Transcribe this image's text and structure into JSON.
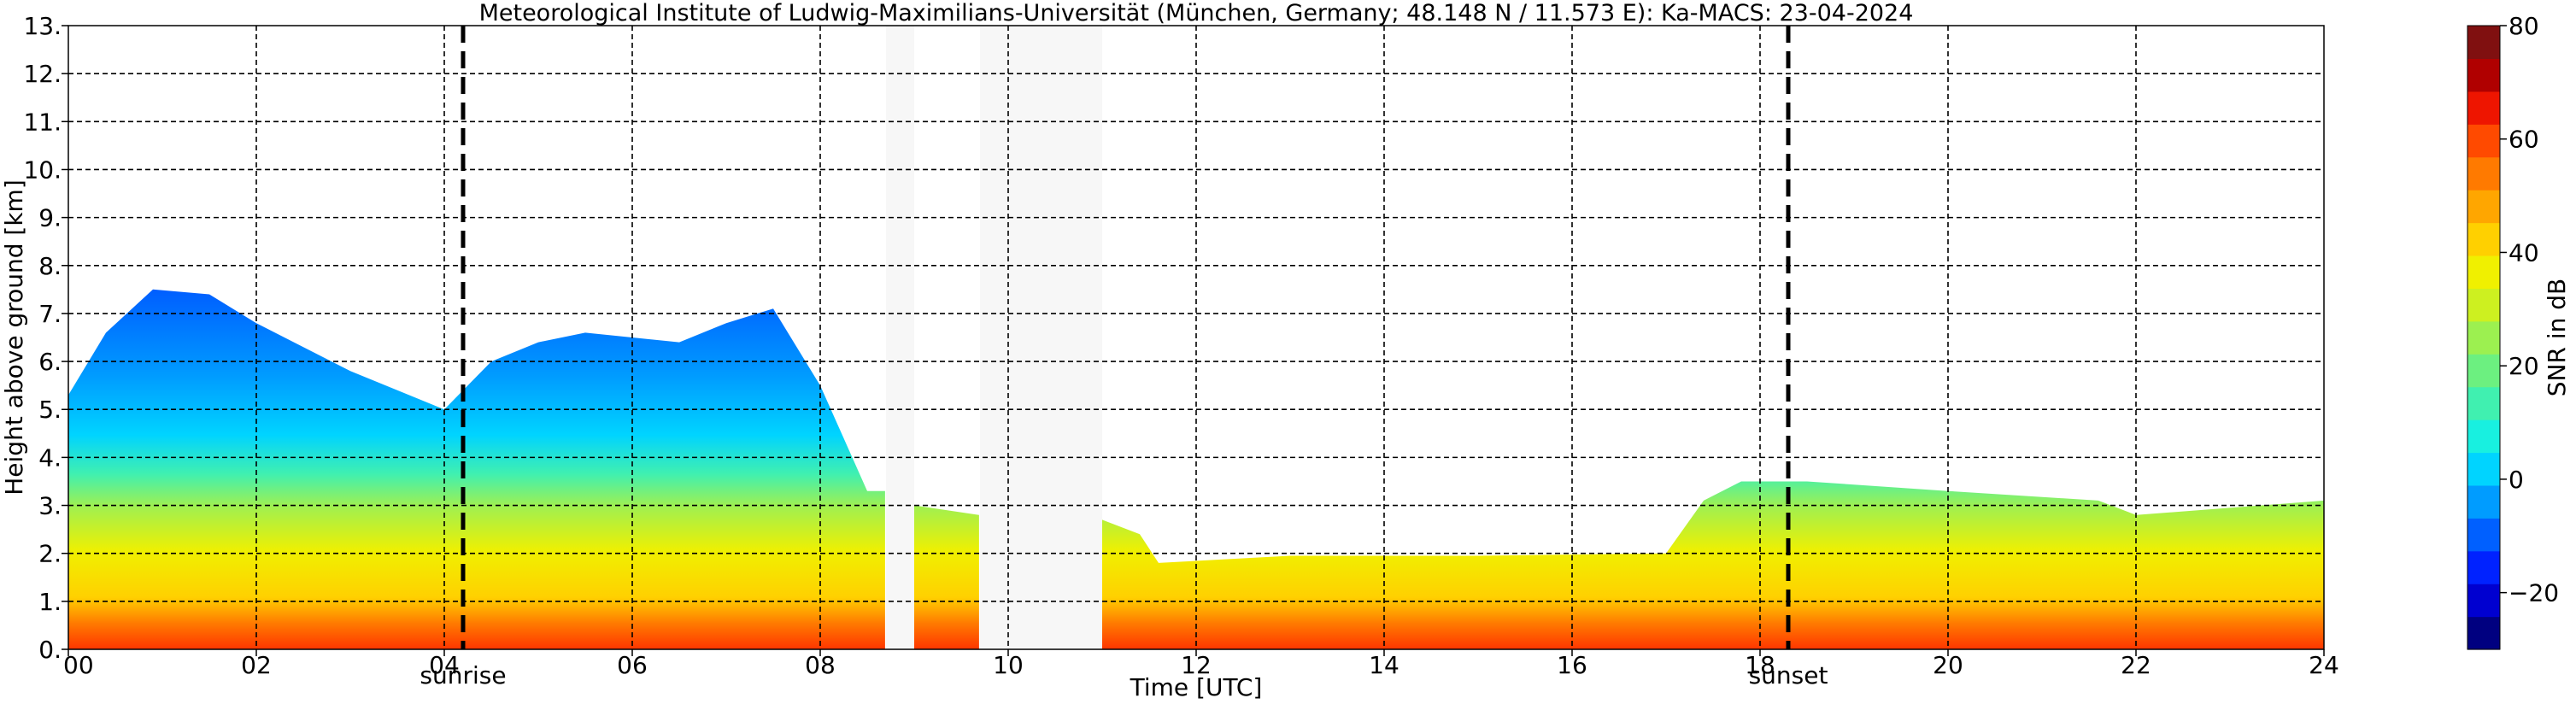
{
  "chart_data": {
    "type": "heatmap",
    "title": "Meteorological Institute of Ludwig-Maximilians-Universität (München, Germany; 48.148 N / 11.573 E):    Ka-MACS: 23-04-2024",
    "xlabel": "Time [UTC]",
    "ylabel": "Height above ground [km]",
    "xlim": [
      0,
      24
    ],
    "ylim": [
      0,
      13
    ],
    "x_ticks": [
      "00",
      "02",
      "04",
      "06",
      "08",
      "10",
      "12",
      "14",
      "16",
      "18",
      "20",
      "22",
      "24"
    ],
    "y_ticks": [
      "0.",
      "1.",
      "2.",
      "3.",
      "4.",
      "5.",
      "6.",
      "7.",
      "8.",
      "9.",
      "10.",
      "11.",
      "12.",
      "13."
    ],
    "grid": true,
    "events": [
      {
        "label": "sunrise",
        "time": 4.2
      },
      {
        "label": "sunset",
        "time": 18.3
      }
    ],
    "data_gaps": [
      [
        8.7,
        9.0
      ],
      [
        9.7,
        11.0
      ]
    ],
    "colorbar": {
      "label": "SNR in dB",
      "range": [
        -30,
        80
      ],
      "ticks": [
        "80",
        "60",
        "40",
        "20",
        "0",
        "−20"
      ],
      "tick_values": [
        80,
        60,
        40,
        20,
        0,
        -20
      ],
      "colors": [
        "#000080",
        "#0000d0",
        "#0022ff",
        "#0060ff",
        "#009cff",
        "#00d4ff",
        "#18f0e0",
        "#40f0b0",
        "#6cf080",
        "#9cf050",
        "#cdf020",
        "#f0f000",
        "#ffd000",
        "#ffa600",
        "#ff7a00",
        "#ff4a00",
        "#ee1500",
        "#b00000",
        "#801010"
      ]
    },
    "echo_top_km": [
      {
        "time": 0.0,
        "top": 5.3
      },
      {
        "time": 0.4,
        "top": 6.6
      },
      {
        "time": 0.9,
        "top": 7.5
      },
      {
        "time": 1.5,
        "top": 7.4
      },
      {
        "time": 2.0,
        "top": 6.8
      },
      {
        "time": 2.5,
        "top": 6.3
      },
      {
        "time": 3.0,
        "top": 5.8
      },
      {
        "time": 3.5,
        "top": 5.4
      },
      {
        "time": 4.0,
        "top": 5.0
      },
      {
        "time": 4.5,
        "top": 6.0
      },
      {
        "time": 5.0,
        "top": 6.4
      },
      {
        "time": 5.5,
        "top": 6.6
      },
      {
        "time": 6.0,
        "top": 6.5
      },
      {
        "time": 6.5,
        "top": 6.4
      },
      {
        "time": 7.0,
        "top": 6.8
      },
      {
        "time": 7.5,
        "top": 7.1
      },
      {
        "time": 8.0,
        "top": 5.5
      },
      {
        "time": 8.5,
        "top": 3.3
      },
      {
        "time": 8.69,
        "top": 3.3
      },
      {
        "time": 9.0,
        "top": 3.0
      },
      {
        "time": 9.69,
        "top": 2.8
      },
      {
        "time": 11.0,
        "top": 2.7
      },
      {
        "time": 11.4,
        "top": 2.4
      },
      {
        "time": 11.6,
        "top": 1.8
      },
      {
        "time": 13.0,
        "top": 1.95
      },
      {
        "time": 15.0,
        "top": 1.95
      },
      {
        "time": 17.0,
        "top": 2.0
      },
      {
        "time": 17.4,
        "top": 3.1
      },
      {
        "time": 17.8,
        "top": 3.5
      },
      {
        "time": 18.5,
        "top": 3.5
      },
      {
        "time": 20.0,
        "top": 3.3
      },
      {
        "time": 21.6,
        "top": 3.1
      },
      {
        "time": 22.0,
        "top": 2.8
      },
      {
        "time": 24.0,
        "top": 3.1
      }
    ]
  }
}
